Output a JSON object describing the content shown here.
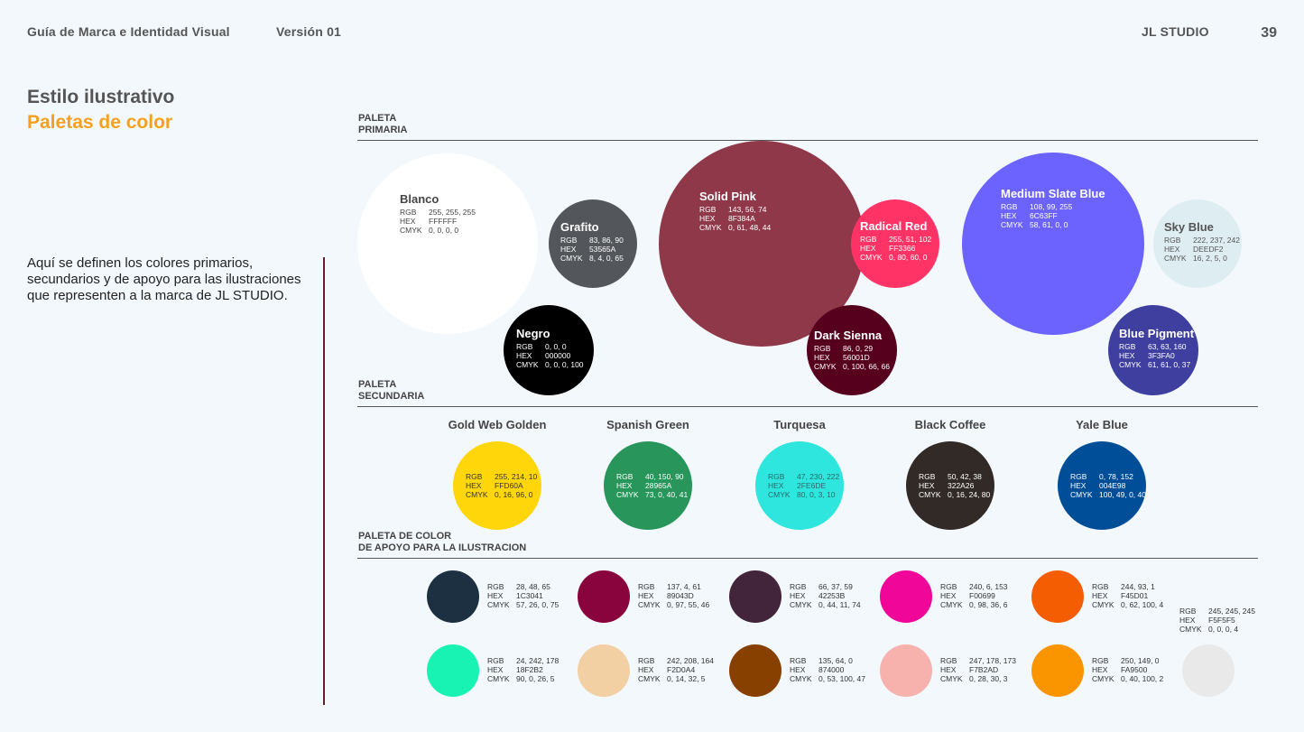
{
  "header": {
    "doc_title": "Guía de Marca e Identidad Visual",
    "version": "Versión 01",
    "studio": "JL STUDIO",
    "page": "39"
  },
  "title": {
    "line1": "Estilo ilustrativo",
    "line2": "Paletas de color"
  },
  "intro": "Aquí se definen los colores primarios, secundarios y de apoyo para las ilustraciones que representen a la marca de JL STUDIO.",
  "labels": {
    "primary": [
      "PALETA",
      "PRIMARIA"
    ],
    "secondary": [
      "PALETA",
      "SECUNDARIA"
    ],
    "support": [
      "PALETA DE COLOR",
      "DE APOYO PARA LA ILUSTRACION"
    ]
  },
  "keys": {
    "rgb": "RGB",
    "hex": "HEX",
    "cmyk": "CMYK"
  },
  "primary": [
    {
      "name": "Blanco",
      "rgb": "255, 255, 255",
      "hex": "FFFFFF",
      "cmyk": "0, 0, 0, 0",
      "color": "#ffffff",
      "text": "#444444"
    },
    {
      "name": "Grafito",
      "rgb": "83, 86, 90",
      "hex": "53565A",
      "cmyk": "8, 4, 0, 65",
      "color": "#53565a",
      "text": "#ffffff"
    },
    {
      "name": "Negro",
      "rgb": "0, 0, 0",
      "hex": "000000",
      "cmyk": "0, 0, 0, 100",
      "color": "#000000",
      "text": "#ffffff"
    },
    {
      "name": "Solid Pink",
      "rgb": "143, 56, 74",
      "hex": "8F384A",
      "cmyk": "0, 61, 48, 44",
      "color": "#8f384a",
      "text": "#ffffff"
    },
    {
      "name": "Radical Red",
      "rgb": "255, 51, 102",
      "hex": "FF3366",
      "cmyk": "0, 80, 60, 0",
      "color": "#ff3366",
      "text": "#ffffff"
    },
    {
      "name": "Dark Sienna",
      "rgb": "86, 0, 29",
      "hex": "56001D",
      "cmyk": "0, 100, 66, 66",
      "color": "#56001d",
      "text": "#ffffff"
    },
    {
      "name": "Medium Slate Blue",
      "rgb": "108, 99, 255",
      "hex": "6C63FF",
      "cmyk": "58, 61, 0, 0",
      "color": "#6c63ff",
      "text": "#ffffff"
    },
    {
      "name": "Sky Blue",
      "rgb": "222, 237, 242",
      "hex": "DEEDF2",
      "cmyk": "16, 2, 5, 0",
      "color": "#deedf2",
      "text": "#555555"
    },
    {
      "name": "Blue Pigment",
      "rgb": "63, 63, 160",
      "hex": "3F3FA0",
      "cmyk": "61, 61, 0, 37",
      "color": "#3f3fa0",
      "text": "#ffffff"
    }
  ],
  "secondary": [
    {
      "name": "Gold Web Golden",
      "rgb": "255, 214, 10",
      "hex": "FFD60A",
      "cmyk": "0, 16, 96, 0",
      "color": "#ffd60a",
      "text": "#333333"
    },
    {
      "name": "Spanish Green",
      "rgb": "40, 150, 90",
      "hex": "28965A",
      "cmyk": "73, 0, 40, 41",
      "color": "#28965a",
      "text": "#ffffff"
    },
    {
      "name": "Turquesa",
      "rgb": "47, 230, 222",
      "hex": "2FE6DE",
      "cmyk": "80, 0, 3, 10",
      "color": "#2fe6de",
      "text": "#2a6a6a"
    },
    {
      "name": "Black Coffee",
      "rgb": "50, 42, 38",
      "hex": "322A26",
      "cmyk": "0, 16, 24, 80",
      "color": "#322a26",
      "text": "#ffffff"
    },
    {
      "name": "Yale Blue",
      "rgb": "0, 78, 152",
      "hex": "004E98",
      "cmyk": "100, 49, 0, 40",
      "color": "#004e98",
      "text": "#ffffff"
    }
  ],
  "support": [
    {
      "rgb": "28, 48, 65",
      "hex": "1C3041",
      "cmyk": "57, 26, 0, 75",
      "color": "#1c3041"
    },
    {
      "rgb": "137, 4, 61",
      "hex": "89043D",
      "cmyk": "0, 97, 55, 46",
      "color": "#89043d"
    },
    {
      "rgb": "66, 37, 59",
      "hex": "42253B",
      "cmyk": "0, 44, 11, 74",
      "color": "#42253b"
    },
    {
      "rgb": "240, 6, 153",
      "hex": "F00699",
      "cmyk": "0, 98, 36, 6",
      "color": "#f00699"
    },
    {
      "rgb": "244, 93, 1",
      "hex": "F45D01",
      "cmyk": "0, 62, 100, 4",
      "color": "#f45d01"
    },
    {
      "rgb": "245, 245, 245",
      "hex": "F5F5F5",
      "cmyk": "0, 0, 0, 4",
      "color": "#e9e9e9"
    },
    {
      "rgb": "24, 242, 178",
      "hex": "18F2B2",
      "cmyk": "90, 0, 26, 5",
      "color": "#18f2b2"
    },
    {
      "rgb": "242, 208, 164",
      "hex": "F2D0A4",
      "cmyk": "0, 14, 32, 5",
      "color": "#f2d0a4"
    },
    {
      "rgb": "135, 64, 0",
      "hex": "874000",
      "cmyk": "0, 53, 100, 47",
      "color": "#874000"
    },
    {
      "rgb": "247, 178, 173",
      "hex": "F7B2AD",
      "cmyk": "0, 28, 30, 3",
      "color": "#f7b2ad"
    },
    {
      "rgb": "250, 149, 0",
      "hex": "FA9500",
      "cmyk": "0, 40, 100, 2",
      "color": "#fa9500"
    }
  ]
}
